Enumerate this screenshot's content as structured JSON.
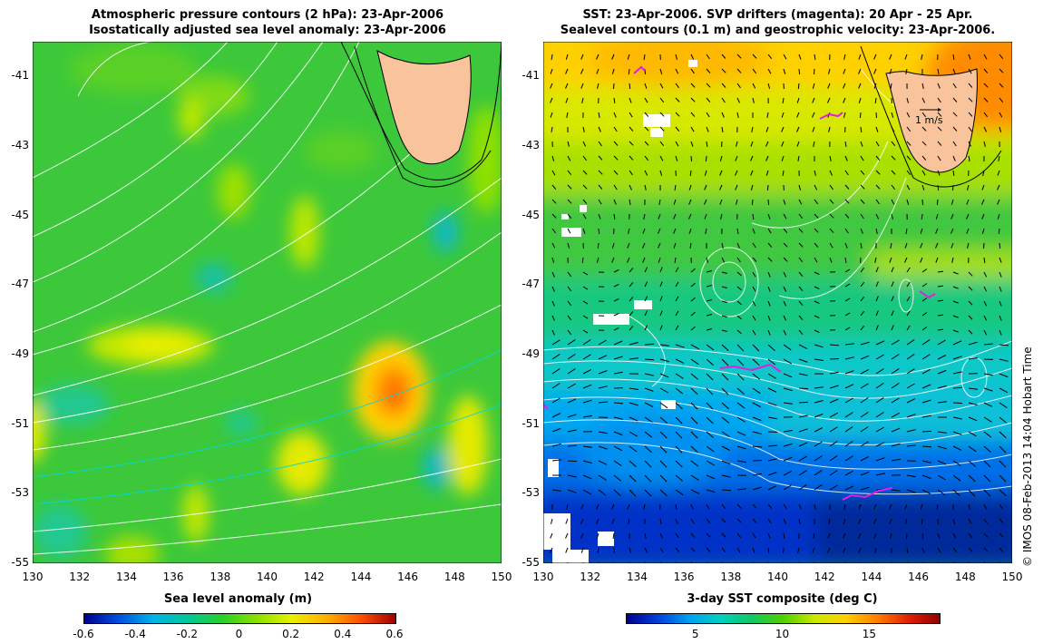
{
  "left_panel": {
    "title_line1": "Atmospheric pressure contours (2 hPa): 23-Apr-2006",
    "title_line2": "Isostatically adjusted sea level anomaly: 23-Apr-2006",
    "colorbar_title": "Sea level anomaly (m)",
    "colorbar_ticks": [
      "-0.6",
      "-0.4",
      "-0.2",
      "0",
      "0.2",
      "0.4",
      "0.6"
    ],
    "colorbar_range": [
      -0.6,
      0.6
    ]
  },
  "right_panel": {
    "title_line1": "SST: 23-Apr-2006. SVP drifters (magenta): 20 Apr - 25 Apr.",
    "title_line2": "Sealevel contours (0.1 m) and geostrophic velocity: 23-Apr-2006.",
    "colorbar_title": "3-day SST composite (deg C)",
    "colorbar_ticks": [
      "5",
      "10",
      "15"
    ],
    "colorbar_range": [
      1,
      19
    ],
    "vector_scale_label": "1 m/s"
  },
  "axes": {
    "x_ticks": [
      "130",
      "132",
      "134",
      "136",
      "138",
      "140",
      "142",
      "144",
      "146",
      "148",
      "150"
    ],
    "y_ticks": [
      "-41",
      "-43",
      "-45",
      "-47",
      "-49",
      "-51",
      "-53",
      "-55"
    ],
    "lon_range": [
      130,
      150
    ],
    "lat_range": [
      -55,
      -40
    ]
  },
  "credit": "© IMOS 08-Feb-2013 14:04 Hobart Time",
  "colors": {
    "land": "#f9c49b",
    "coast": "#000000",
    "pressure_contour": "#ffffff",
    "drifter": "#e020e0",
    "sla_colormap": [
      "#000090",
      "#0050e0",
      "#00b4e8",
      "#00c896",
      "#28d028",
      "#8ee000",
      "#e8f000",
      "#ffb000",
      "#ff5000",
      "#a00000"
    ],
    "sst_colormap": [
      "#000090",
      "#0040d8",
      "#00a0f0",
      "#00d0c0",
      "#10c860",
      "#50d000",
      "#c8e800",
      "#ffd000",
      "#ff8000",
      "#e02000",
      "#900000"
    ]
  }
}
